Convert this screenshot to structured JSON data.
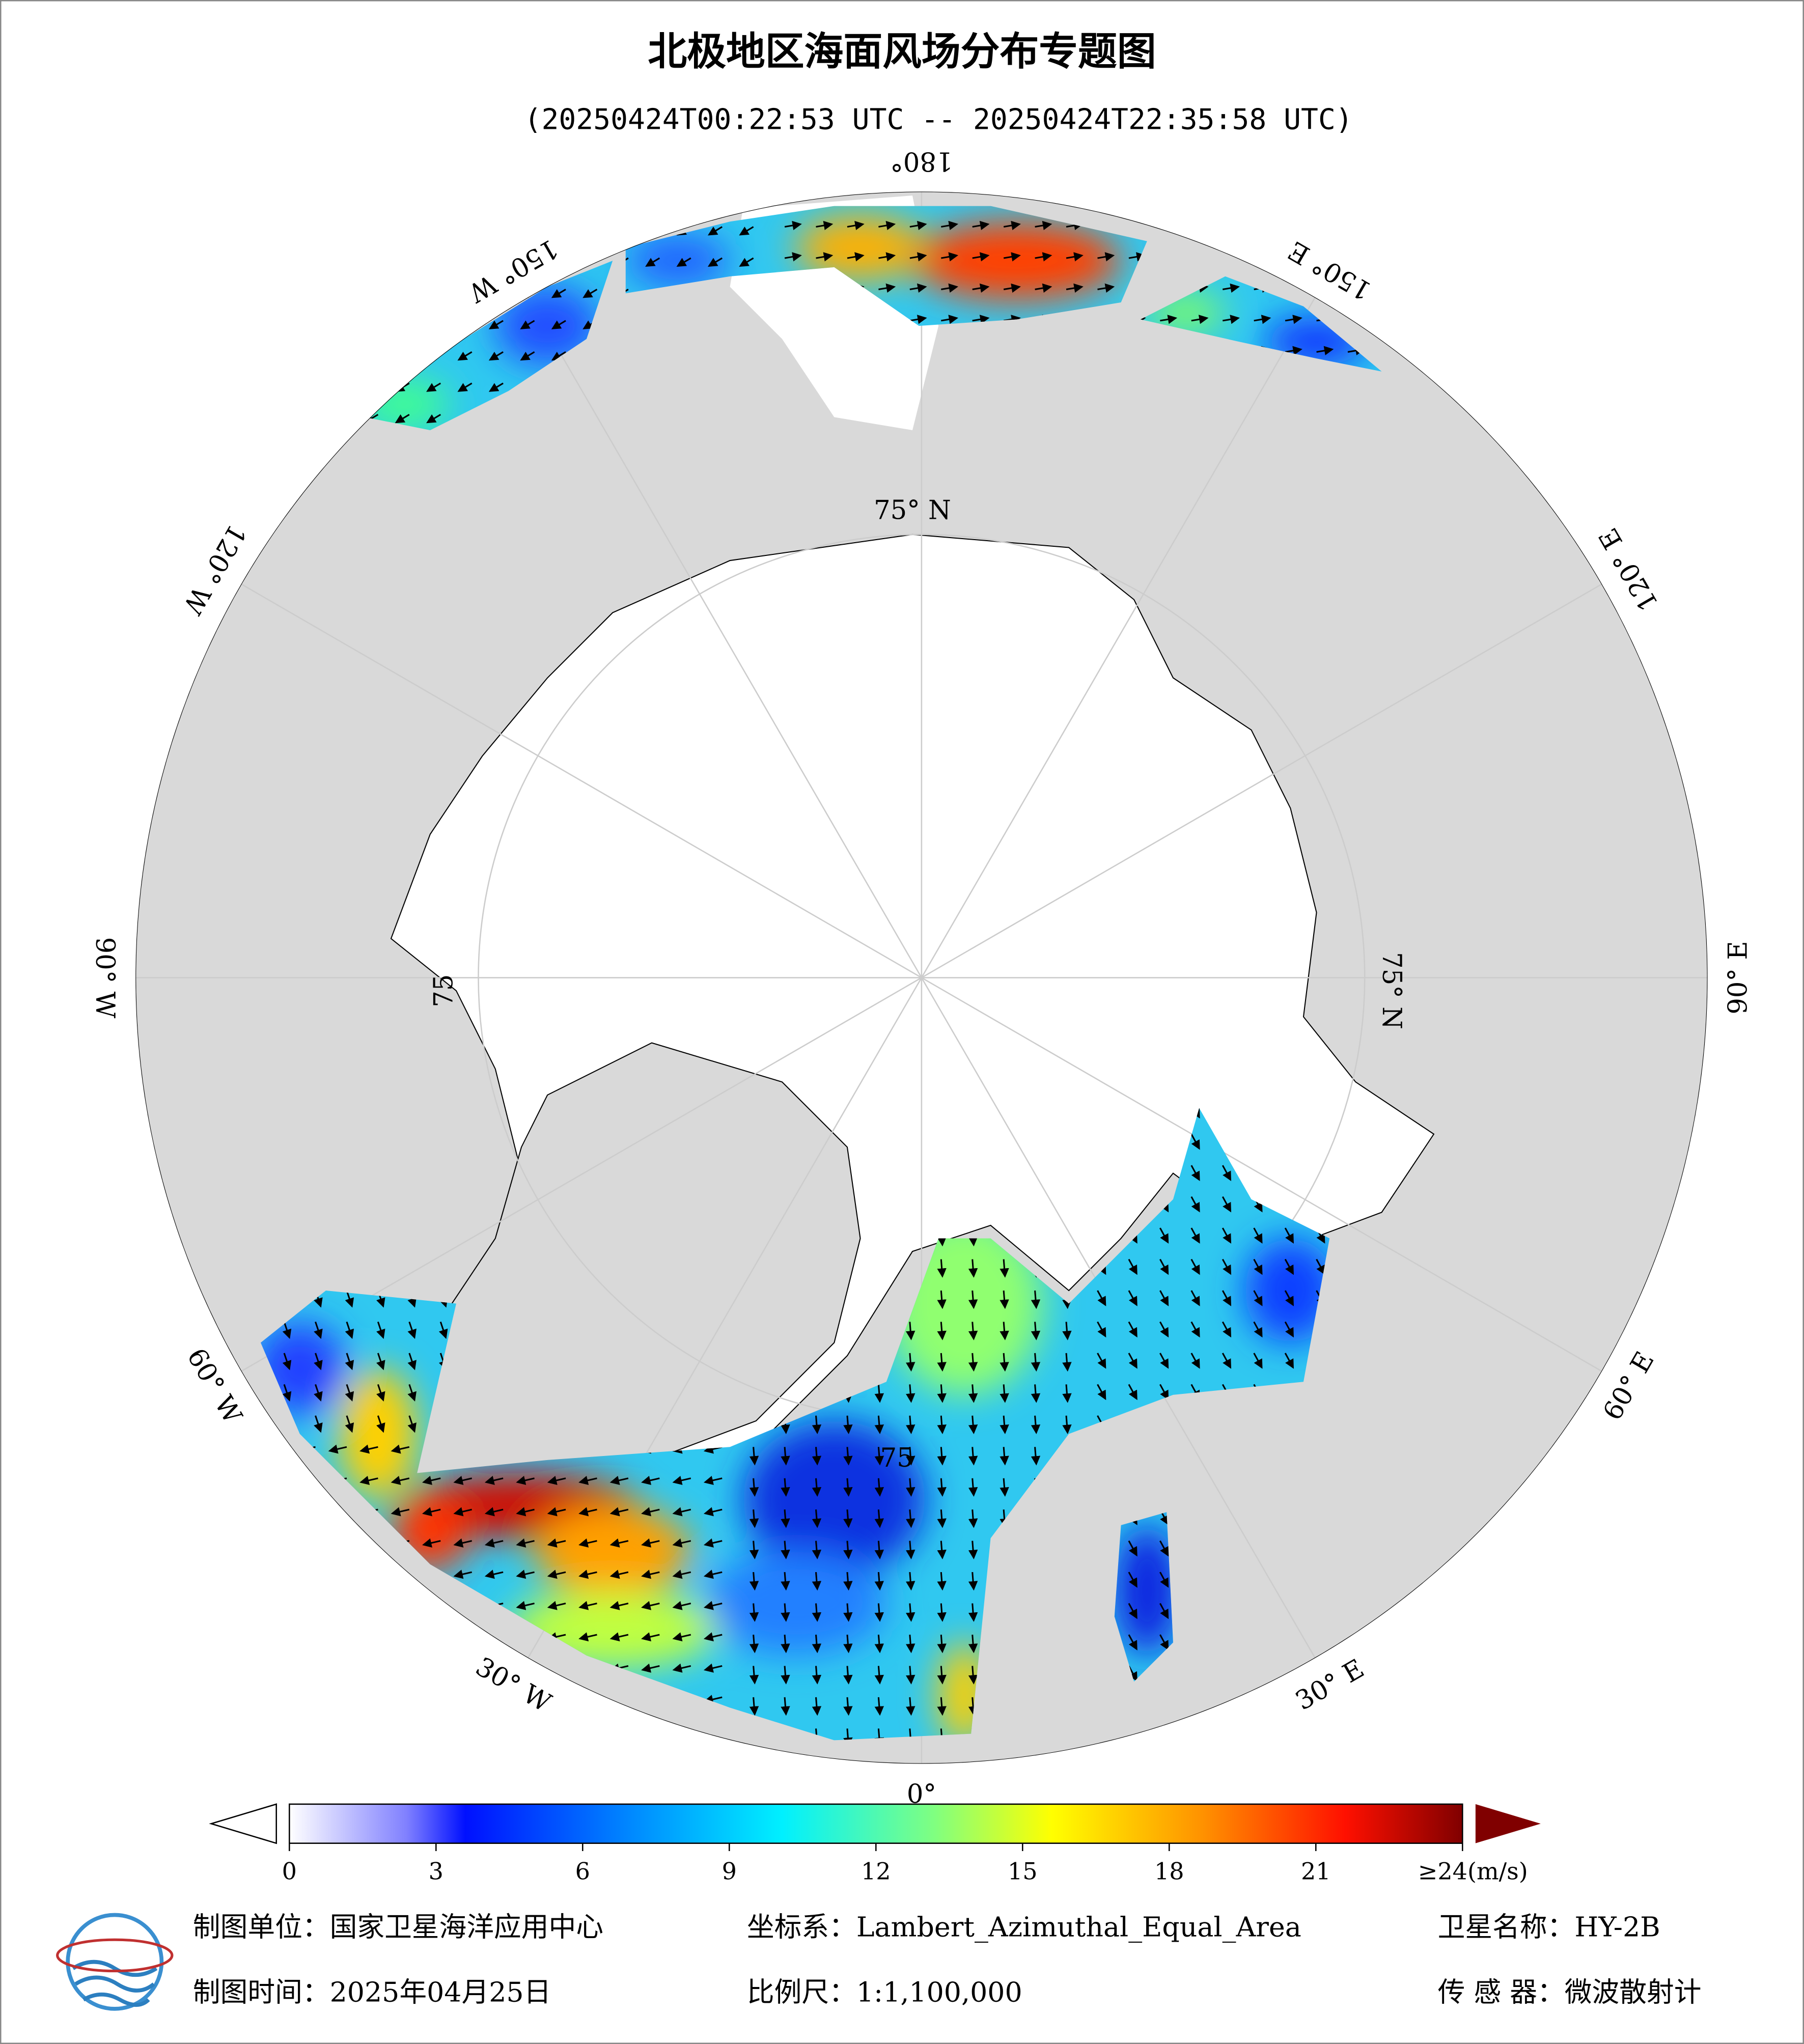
{
  "title": "北极地区海面风场分布专题图",
  "subtitle": "(20250424T00:22:53 UTC -- 20250424T22:35:58 UTC)",
  "map": {
    "meridian_labels": [
      "0°",
      "30° E",
      "60° E",
      "90° E",
      "120° E",
      "150° E",
      "180°",
      "150° W",
      "120° W",
      "90° W",
      "60° W",
      "30° W"
    ],
    "latitude_labels": [
      "75° N",
      "75° N",
      "75",
      "75"
    ]
  },
  "colorbar": {
    "lim": [
      0,
      24
    ],
    "ticks": [
      0,
      3,
      6,
      9,
      12,
      15,
      18,
      21,
      {
        "value": 24,
        "label": "≥24(m/s)"
      }
    ]
  },
  "footer": {
    "items": [
      "制图单位：国家卫星海洋应用中心",
      "坐标系：Lambert_Azimuthal_Equal_Area",
      "卫星名称：HY-2B",
      "制图时间：2025年04月25日",
      "比例尺：1:1,100,000",
      "传 感 器：微波散射计"
    ]
  }
}
